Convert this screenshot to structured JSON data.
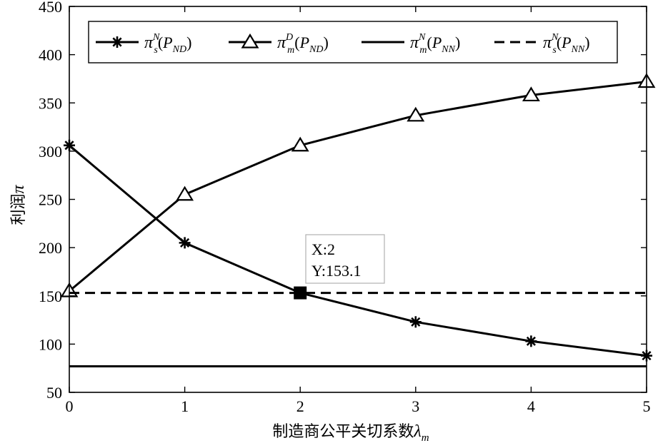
{
  "chart_data": {
    "type": "line",
    "xlabel": "制造商公平关切系数",
    "xlabel_symbol": "λ",
    "xlabel_symbol_sub": "m",
    "ylabel": "利润",
    "ylabel_symbol": "π",
    "xlim": [
      0,
      5
    ],
    "ylim": [
      50,
      450
    ],
    "xticks": [
      "0",
      "1",
      "2",
      "3",
      "4",
      "5"
    ],
    "yticks": [
      "50",
      "100",
      "150",
      "200",
      "250",
      "300",
      "350",
      "400",
      "450"
    ],
    "grid": false,
    "legend_position": "top",
    "series": [
      {
        "legend": {
          "sub": "s",
          "sup": "N",
          "arg": "P",
          "arg_sub": "ND"
        },
        "marker": "asterisk",
        "dash": "solid",
        "x": [
          0,
          1,
          2,
          3,
          4,
          5
        ],
        "y": [
          306,
          205,
          153.1,
          123,
          103,
          88
        ]
      },
      {
        "legend": {
          "sub": "m",
          "sup": "D",
          "arg": "P",
          "arg_sub": "ND"
        },
        "marker": "triangle",
        "dash": "solid",
        "x": [
          0,
          1,
          2,
          3,
          4,
          5
        ],
        "y": [
          155,
          255,
          306,
          337,
          358,
          372
        ]
      },
      {
        "legend": {
          "sub": "m",
          "sup": "N",
          "arg": "P",
          "arg_sub": "NN"
        },
        "marker": "none",
        "dash": "solid",
        "x": [
          0,
          5
        ],
        "y": [
          77,
          77
        ]
      },
      {
        "legend": {
          "sub": "s",
          "sup": "N",
          "arg": "P",
          "arg_sub": "NN"
        },
        "marker": "none",
        "dash": "dashed",
        "x": [
          0,
          5
        ],
        "y": [
          153.1,
          153.1
        ]
      }
    ],
    "datatip": {
      "x": 2,
      "y": 153.1,
      "x_text": "X:2",
      "y_text": "Y:153.1"
    }
  }
}
